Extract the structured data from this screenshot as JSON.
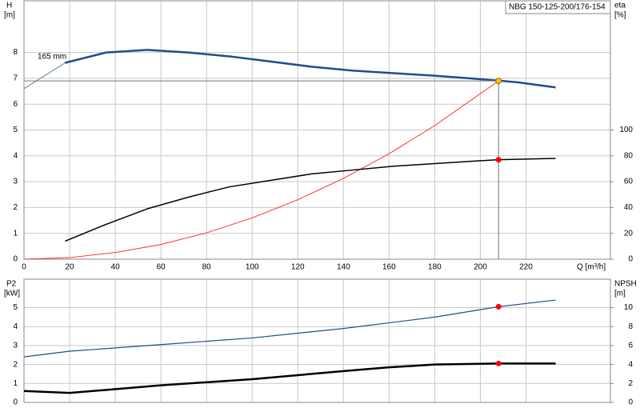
{
  "chart_data": [
    {
      "type": "line",
      "y_label": "H",
      "y_unit": "[m]",
      "y2_label": "eta",
      "y2_unit": "[%]",
      "x_label": "Q [m³/h]",
      "annotation": "165 mm",
      "pump_label": "NBG 150-125-200/176-154",
      "xlim": [
        0,
        257
      ],
      "xticks": [
        0,
        20,
        40,
        60,
        80,
        100,
        120,
        140,
        160,
        180,
        200,
        220
      ],
      "ylim": [
        0,
        10
      ],
      "yticks": [
        0,
        1,
        2,
        3,
        4,
        5,
        6,
        7,
        8
      ],
      "y2lim": [
        0,
        200
      ],
      "y2ticks": [
        0,
        20,
        40,
        60,
        80,
        100
      ],
      "grid": true,
      "show_xtick_labels": true,
      "series": [
        {
          "color": "#5a7fa8",
          "width": 1,
          "style": "line",
          "x": [
            0,
            18
          ],
          "values": [
            6.6,
            7.6
          ]
        },
        {
          "color": "#1f4e8c",
          "width": 2.5,
          "style": "line",
          "x": [
            18,
            36,
            54,
            72,
            90,
            108,
            126,
            144,
            162,
            180,
            198,
            216,
            233
          ],
          "values": [
            7.6,
            8.0,
            8.1,
            8.0,
            7.85,
            7.65,
            7.45,
            7.3,
            7.2,
            7.1,
            6.98,
            6.85,
            6.65
          ]
        },
        {
          "color": "#ff3030",
          "width": 1,
          "style": "line",
          "x": [
            0,
            20,
            40,
            60,
            80,
            100,
            120,
            140,
            160,
            180,
            208
          ],
          "values": [
            0,
            0.06,
            0.26,
            0.57,
            1.02,
            1.6,
            2.3,
            3.13,
            4.08,
            5.17,
            6.9
          ]
        },
        {
          "color": "#000000",
          "width": 1.5,
          "style": "line",
          "axis": "y2",
          "x": [
            18,
            36,
            54,
            72,
            90,
            108,
            126,
            144,
            162,
            180,
            198,
            208,
            233
          ],
          "values": [
            14,
            27,
            39,
            48,
            56,
            61,
            66,
            69,
            72,
            74,
            76,
            77,
            78
          ]
        },
        {
          "color": "#ffc000",
          "width": 1,
          "style": "marker",
          "guide": true,
          "x": [
            208
          ],
          "values": [
            6.9
          ]
        },
        {
          "color": "#ff0000",
          "width": 1,
          "style": "marker",
          "axis": "y2",
          "x": [
            208
          ],
          "values": [
            77
          ]
        }
      ]
    },
    {
      "type": "line",
      "y_label": "P2",
      "y_unit": "[kW]",
      "y2_label": "NPSH",
      "y2_unit": "[m]",
      "xlim": [
        0,
        257
      ],
      "xticks": [
        0,
        20,
        40,
        60,
        80,
        100,
        120,
        140,
        160,
        180,
        200,
        220
      ],
      "ylim": [
        0,
        6.5
      ],
      "yticks": [
        0,
        1,
        2,
        3,
        4,
        5
      ],
      "y2lim": [
        0,
        13
      ],
      "y2ticks": [
        0,
        2,
        4,
        6,
        8,
        10
      ],
      "grid": true,
      "show_xtick_labels": false,
      "series": [
        {
          "color": "#1f4e8c",
          "width": 1.2,
          "style": "line",
          "x": [
            0,
            20,
            60,
            100,
            140,
            180,
            208,
            233
          ],
          "values": [
            2.4,
            2.7,
            3.05,
            3.4,
            3.9,
            4.5,
            5.05,
            5.4
          ]
        },
        {
          "color": "#000000",
          "width": 2.5,
          "style": "line",
          "axis": "y2",
          "x": [
            0,
            20,
            60,
            100,
            140,
            160,
            180,
            208,
            233
          ],
          "values": [
            1.2,
            1.0,
            1.8,
            2.45,
            3.3,
            3.7,
            4.0,
            4.1,
            4.1
          ]
        },
        {
          "color": "#ff0000",
          "width": 1,
          "style": "marker",
          "x": [
            208
          ],
          "values": [
            5.05
          ]
        },
        {
          "color": "#ff0000",
          "width": 1,
          "style": "marker",
          "axis": "y2",
          "x": [
            208
          ],
          "values": [
            4.1
          ]
        }
      ]
    }
  ]
}
